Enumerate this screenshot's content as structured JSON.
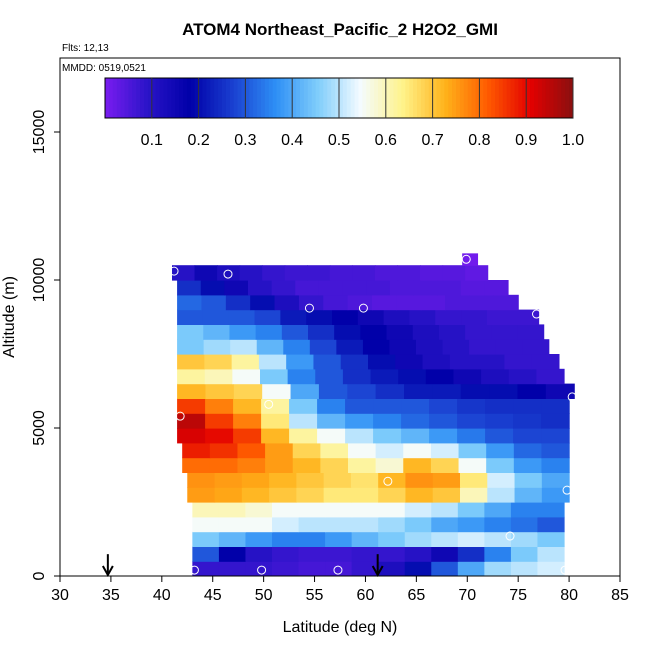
{
  "chart_data": {
    "type": "heatmap",
    "title": "ATOM4 Northeast_Pacific_2 H2O2_GMI",
    "flights_label": "Flts: 12,13",
    "dates_label": "MMDD: 0519,0521",
    "xlabel": "Latitude (deg N)",
    "ylabel": "Altitude (m)",
    "xlim": [
      30,
      85
    ],
    "ylim": [
      0,
      17500
    ],
    "x_ticks": [
      30,
      35,
      40,
      45,
      50,
      55,
      60,
      65,
      70,
      75,
      80,
      85
    ],
    "y_ticks": [
      0,
      5000,
      10000,
      15000
    ],
    "x_tick_labels": [
      "30",
      "35",
      "40",
      "45",
      "50",
      "55",
      "60",
      "65",
      "70",
      "75",
      "80",
      "85"
    ],
    "y_tick_labels": [
      "0",
      "5000",
      "10000",
      "15000"
    ],
    "colorbar": {
      "range": [
        0,
        1.0
      ],
      "ticks": [
        0.1,
        0.2,
        0.3,
        0.4,
        0.5,
        0.6,
        0.7,
        0.8,
        0.9,
        1.0
      ],
      "tick_labels": [
        "0.1",
        "0.2",
        "0.3",
        "0.4",
        "0.5",
        "0.6",
        "0.7",
        "0.8",
        "0.9",
        "1.0"
      ],
      "colors": [
        "#7a1cf0",
        "#2a14c8",
        "#0000a8",
        "#1a3fd0",
        "#2d8ef5",
        "#7fcdfb",
        "#f4fbff",
        "#fff38a",
        "#ffb21a",
        "#ff5a00",
        "#e30000",
        "#8a1010"
      ]
    },
    "latitude_edges": [
      41,
      42,
      43,
      44,
      46,
      48,
      50,
      52,
      54,
      56,
      58,
      60,
      62,
      64,
      66,
      68,
      70,
      72,
      74,
      76,
      78,
      80
    ],
    "altitude_layers": [
      {
        "bottom": 0,
        "top": 500,
        "lat_min": 43,
        "lat_max": 79.5,
        "values": [
          0.08,
          0.08,
          0.08,
          0.07,
          0.06,
          0.06,
          0.08,
          0.12,
          0.2,
          0.3,
          0.4,
          0.48,
          0.5,
          0.52
        ]
      },
      {
        "bottom": 500,
        "top": 1000,
        "lat_min": 43,
        "lat_max": 79.5,
        "values": [
          0.3,
          0.18,
          0.1,
          0.08,
          0.07,
          0.07,
          0.08,
          0.08,
          0.1,
          0.15,
          0.25,
          0.35,
          0.45,
          0.5
        ]
      },
      {
        "bottom": 1000,
        "top": 1500,
        "lat_min": 43,
        "lat_max": 79.5,
        "values": [
          0.45,
          0.42,
          0.38,
          0.35,
          0.35,
          0.38,
          0.42,
          0.45,
          0.48,
          0.5,
          0.52,
          0.5,
          0.48,
          0.45
        ]
      },
      {
        "bottom": 1500,
        "top": 2000,
        "lat_min": 43,
        "lat_max": 79.5,
        "values": [
          0.55,
          0.55,
          0.55,
          0.52,
          0.5,
          0.5,
          0.5,
          0.48,
          0.45,
          0.4,
          0.38,
          0.35,
          0.33,
          0.3
        ]
      },
      {
        "bottom": 2000,
        "top": 2500,
        "lat_min": 43,
        "lat_max": 79.5,
        "values": [
          0.6,
          0.6,
          0.58,
          0.55,
          0.55,
          0.55,
          0.55,
          0.55,
          0.52,
          0.5,
          0.45,
          0.4,
          0.35,
          0.35
        ]
      },
      {
        "bottom": 2500,
        "top": 3000,
        "lat_min": 42.5,
        "lat_max": 80,
        "values": [
          0.75,
          0.74,
          0.72,
          0.7,
          0.68,
          0.65,
          0.65,
          0.68,
          0.72,
          0.7,
          0.6,
          0.5,
          0.42,
          0.38
        ]
      },
      {
        "bottom": 3000,
        "top": 3500,
        "lat_min": 42.5,
        "lat_max": 80,
        "values": [
          0.76,
          0.75,
          0.74,
          0.72,
          0.7,
          0.68,
          0.66,
          0.72,
          0.76,
          0.75,
          0.65,
          0.52,
          0.45,
          0.4
        ]
      },
      {
        "bottom": 3500,
        "top": 4000,
        "lat_min": 42,
        "lat_max": 80,
        "values": [
          0.8,
          0.8,
          0.78,
          0.75,
          0.72,
          0.68,
          0.62,
          0.58,
          0.72,
          0.68,
          0.55,
          0.45,
          0.38,
          0.35
        ]
      },
      {
        "bottom": 4000,
        "top": 4500,
        "lat_min": 42,
        "lat_max": 80,
        "values": [
          0.88,
          0.86,
          0.82,
          0.75,
          0.68,
          0.62,
          0.55,
          0.52,
          0.55,
          0.52,
          0.45,
          0.38,
          0.32,
          0.3
        ]
      },
      {
        "bottom": 4500,
        "top": 5000,
        "lat_min": 41.5,
        "lat_max": 80,
        "values": [
          0.92,
          0.9,
          0.85,
          0.72,
          0.62,
          0.55,
          0.5,
          0.45,
          0.42,
          0.38,
          0.34,
          0.3,
          0.28,
          0.28
        ]
      },
      {
        "bottom": 5000,
        "top": 5500,
        "lat_min": 41.5,
        "lat_max": 80,
        "values": [
          0.95,
          0.85,
          0.78,
          0.65,
          0.5,
          0.42,
          0.38,
          0.35,
          0.32,
          0.3,
          0.28,
          0.27,
          0.26,
          0.25
        ]
      },
      {
        "bottom": 5500,
        "top": 6000,
        "lat_min": 41.5,
        "lat_max": 80,
        "values": [
          0.85,
          0.78,
          0.72,
          0.62,
          0.45,
          0.35,
          0.3,
          0.3,
          0.3,
          0.28,
          0.26,
          0.25,
          0.25,
          0.25
        ]
      },
      {
        "bottom": 6000,
        "top": 6500,
        "lat_min": 41.5,
        "lat_max": 80.5,
        "values": [
          0.72,
          0.7,
          0.68,
          0.55,
          0.4,
          0.3,
          0.28,
          0.25,
          0.22,
          0.22,
          0.2,
          0.2,
          0.18,
          0.15
        ]
      },
      {
        "bottom": 6500,
        "top": 7000,
        "lat_min": 41.5,
        "lat_max": 79.5,
        "values": [
          0.62,
          0.6,
          0.55,
          0.45,
          0.35,
          0.3,
          0.25,
          0.22,
          0.2,
          0.18,
          0.15,
          0.12,
          0.1,
          0.08
        ]
      },
      {
        "bottom": 7000,
        "top": 7500,
        "lat_min": 41.5,
        "lat_max": 79,
        "values": [
          0.7,
          0.68,
          0.62,
          0.5,
          0.38,
          0.3,
          0.25,
          0.2,
          0.15,
          0.12,
          0.1,
          0.1,
          0.08,
          0.08
        ]
      },
      {
        "bottom": 7500,
        "top": 8000,
        "lat_min": 41.5,
        "lat_max": 78,
        "values": [
          0.45,
          0.48,
          0.5,
          0.42,
          0.35,
          0.28,
          0.22,
          0.18,
          0.15,
          0.12,
          0.1,
          0.08,
          0.08,
          0.08
        ]
      },
      {
        "bottom": 8000,
        "top": 8500,
        "lat_min": 41.5,
        "lat_max": 77.5,
        "values": [
          0.45,
          0.42,
          0.38,
          0.35,
          0.3,
          0.25,
          0.2,
          0.18,
          0.15,
          0.12,
          0.1,
          0.08,
          0.08,
          0.08
        ]
      },
      {
        "bottom": 8500,
        "top": 9000,
        "lat_min": 41.5,
        "lat_max": 77,
        "values": [
          0.3,
          0.3,
          0.3,
          0.28,
          0.22,
          0.2,
          0.18,
          0.15,
          0.12,
          0.1,
          0.08,
          0.08,
          0.07,
          0.07
        ]
      },
      {
        "bottom": 9000,
        "top": 9500,
        "lat_min": 41.5,
        "lat_max": 75,
        "values": [
          0.32,
          0.3,
          0.25,
          0.2,
          0.12,
          0.08,
          0.06,
          0.05,
          0.04,
          0.04,
          0.04,
          0.05,
          0.05,
          0.05
        ]
      },
      {
        "bottom": 9500,
        "top": 10000,
        "lat_min": 41.5,
        "lat_max": 74,
        "values": [
          0.25,
          0.2,
          0.15,
          0.1,
          0.08,
          0.06,
          0.06,
          0.06,
          0.06,
          0.05,
          0.05,
          0.05,
          0.04,
          0.04
        ]
      },
      {
        "bottom": 10000,
        "top": 10500,
        "lat_min": 41,
        "lat_max": 72,
        "values": [
          0.1,
          0.15,
          0.12,
          0.1,
          0.08,
          0.07,
          0.07,
          0.06,
          0.06,
          0.05,
          0.05,
          0.04,
          0.04,
          0.03
        ]
      },
      {
        "bottom": 10500,
        "top": 10900,
        "lat_min": 69.5,
        "lat_max": 71,
        "values": [
          0.01
        ]
      }
    ],
    "sample_points": [
      {
        "lat": 41.2,
        "alt": 10300
      },
      {
        "lat": 46.5,
        "alt": 10200
      },
      {
        "lat": 54.5,
        "alt": 9050
      },
      {
        "lat": 59.8,
        "alt": 9050
      },
      {
        "lat": 69.9,
        "alt": 10700
      },
      {
        "lat": 76.8,
        "alt": 8850
      },
      {
        "lat": 80.3,
        "alt": 6050
      },
      {
        "lat": 50.5,
        "alt": 5800
      },
      {
        "lat": 41.8,
        "alt": 5400
      },
      {
        "lat": 62.2,
        "alt": 3200
      },
      {
        "lat": 79.8,
        "alt": 2900
      },
      {
        "lat": 74.2,
        "alt": 1350
      },
      {
        "lat": 43.2,
        "alt": 200
      },
      {
        "lat": 49.8,
        "alt": 200
      },
      {
        "lat": 57.3,
        "alt": 200
      },
      {
        "lat": 79.6,
        "alt": 200
      }
    ],
    "arrows": [
      {
        "lat": 34.7,
        "alt": 400
      },
      {
        "lat": 61.2,
        "alt": 400
      }
    ],
    "grid": false
  }
}
